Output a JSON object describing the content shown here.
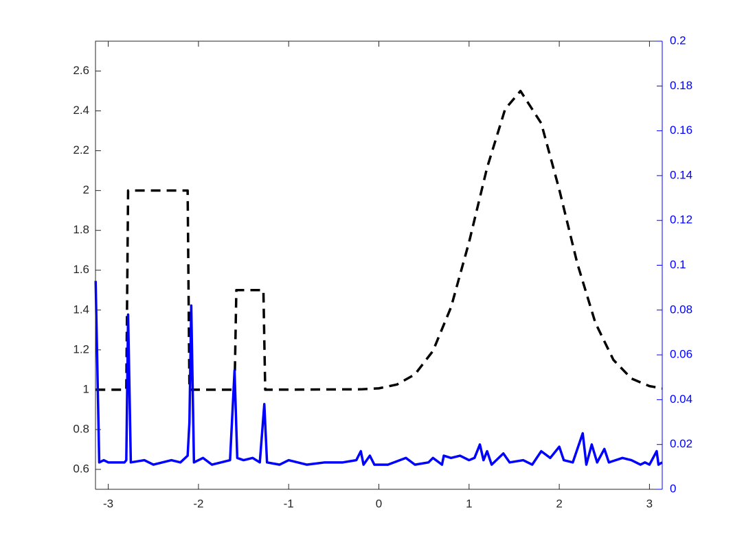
{
  "chart_data": {
    "type": "line",
    "xlim": [
      -3.1416,
      3.1416
    ],
    "xticks": [
      -3,
      -2,
      -1,
      0,
      1,
      2,
      3
    ],
    "ylim": [
      0.5,
      2.75
    ],
    "yticks": [
      0.6,
      0.8,
      1,
      1.2,
      1.4,
      1.6,
      1.8,
      2,
      2.2,
      2.4,
      2.6
    ],
    "y2lim": [
      0,
      0.2
    ],
    "y2ticks": [
      0,
      0.02,
      0.04,
      0.06,
      0.08,
      0.1,
      0.12,
      0.14,
      0.16,
      0.18,
      0.2
    ],
    "y2color": "#0000ff",
    "series": [
      {
        "color": "#000000",
        "dashed": true,
        "x": [
          -3.14,
          -2.8,
          -2.78,
          -2.12,
          -2.1,
          -1.6,
          -1.58,
          -1.28,
          -1.26,
          -0.2,
          0,
          0.2,
          0.4,
          0.6,
          0.8,
          1.0,
          1.2,
          1.4,
          1.57,
          1.8,
          2.0,
          2.2,
          2.4,
          2.6,
          2.8,
          3.0,
          3.14
        ],
        "values": [
          1,
          1,
          2,
          2,
          1,
          1,
          1.5,
          1.5,
          1,
          1.002,
          1.007,
          1.026,
          1.077,
          1.195,
          1.414,
          1.741,
          2.115,
          2.409,
          2.5,
          2.338,
          2.005,
          1.634,
          1.336,
          1.15,
          1.056,
          1.018,
          1.007
        ]
      },
      {
        "color": "#0000ff",
        "dashed": false,
        "axis": "y2",
        "x": [
          -3.14,
          -3.1,
          -3.05,
          -3.0,
          -2.9,
          -2.82,
          -2.8,
          -2.78,
          -2.75,
          -2.6,
          -2.5,
          -2.4,
          -2.3,
          -2.2,
          -2.12,
          -2.1,
          -2.08,
          -2.05,
          -1.95,
          -1.85,
          -1.75,
          -1.65,
          -1.6,
          -1.57,
          -1.5,
          -1.4,
          -1.32,
          -1.27,
          -1.24,
          -1.1,
          -1.0,
          -0.8,
          -0.6,
          -0.4,
          -0.25,
          -0.2,
          -0.17,
          -0.1,
          -0.05,
          0.1,
          0.3,
          0.4,
          0.55,
          0.6,
          0.7,
          0.72,
          0.8,
          0.9,
          1.0,
          1.06,
          1.12,
          1.16,
          1.2,
          1.25,
          1.38,
          1.45,
          1.6,
          1.7,
          1.8,
          1.9,
          2.0,
          2.05,
          2.15,
          2.26,
          2.3,
          2.36,
          2.42,
          2.5,
          2.55,
          2.7,
          2.8,
          2.9,
          2.95,
          3.0,
          3.08,
          3.1,
          3.14
        ],
        "values": [
          0.093,
          0.012,
          0.013,
          0.012,
          0.012,
          0.012,
          0.013,
          0.078,
          0.012,
          0.013,
          0.011,
          0.012,
          0.013,
          0.012,
          0.015,
          0.03,
          0.082,
          0.012,
          0.014,
          0.011,
          0.012,
          0.013,
          0.053,
          0.014,
          0.013,
          0.014,
          0.012,
          0.038,
          0.012,
          0.011,
          0.013,
          0.011,
          0.012,
          0.012,
          0.013,
          0.017,
          0.011,
          0.015,
          0.011,
          0.011,
          0.014,
          0.011,
          0.012,
          0.014,
          0.011,
          0.015,
          0.014,
          0.015,
          0.013,
          0.014,
          0.02,
          0.013,
          0.017,
          0.011,
          0.016,
          0.012,
          0.013,
          0.011,
          0.017,
          0.014,
          0.019,
          0.013,
          0.012,
          0.025,
          0.011,
          0.02,
          0.012,
          0.018,
          0.012,
          0.014,
          0.013,
          0.011,
          0.012,
          0.011,
          0.017,
          0.011,
          0.012
        ]
      }
    ]
  }
}
